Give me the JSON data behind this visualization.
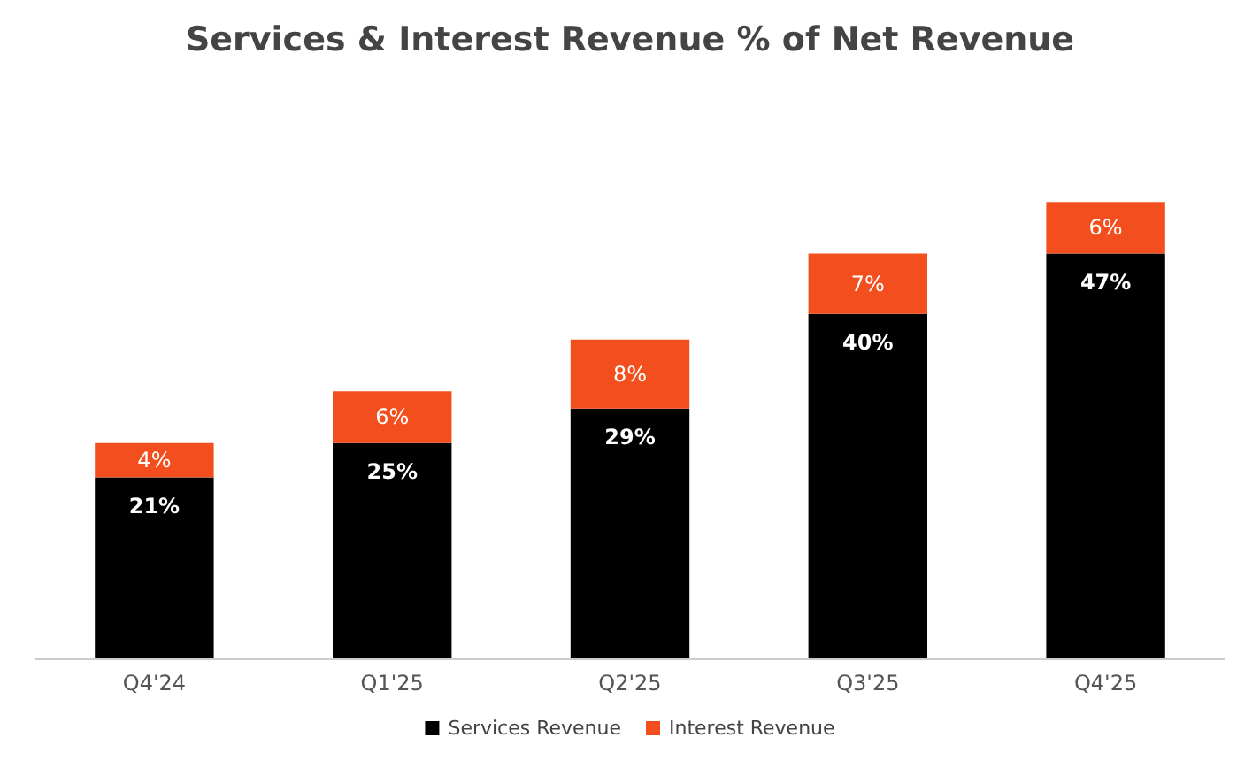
{
  "chart_data": {
    "type": "bar",
    "title": "Services & Interest Revenue % of Net Revenue",
    "categories": [
      "Q4'24",
      "Q1'25",
      "Q2'25",
      "Q3'25",
      "Q4'25"
    ],
    "stacked": true,
    "legend": "bottom",
    "grid": false,
    "series": [
      {
        "name": "Services Revenue",
        "color": "#000000",
        "values": [
          21,
          25,
          29,
          40,
          47
        ],
        "value_labels": [
          "21%",
          "25%",
          "29%",
          "40%",
          "47%"
        ]
      },
      {
        "name": "Interest Revenue",
        "color": "#f24e1e",
        "values": [
          4,
          6,
          8,
          7,
          6
        ],
        "value_labels": [
          "4%",
          "6%",
          "8%",
          "7%",
          "6%"
        ]
      }
    ]
  }
}
